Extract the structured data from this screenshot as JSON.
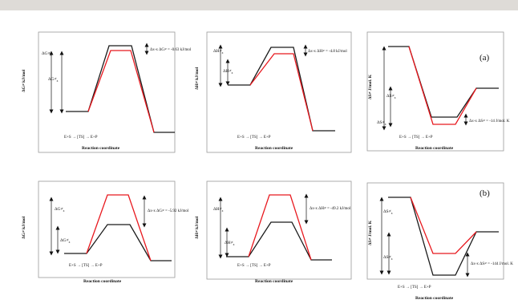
{
  "colors": {
    "black": "#1a1a1a",
    "red": "#e8191f",
    "frame": "#9a9a9a",
    "topbar": "#dedbd7"
  },
  "row_labels": [
    "(a)",
    "(b)"
  ],
  "x_axis_label": "Reaction coordinate",
  "scheme": {
    "es": "E+S",
    "ts": "[TS]",
    "ep": "E+P"
  },
  "panels": {
    "a_g": {
      "ylabel": "ΔG≠ kJ/mol",
      "big": "ΔG≠",
      "big_sub": "x",
      "small": "ΔG≠",
      "small_sub": "x",
      "delta": "Δx-x ΔG≠ = -0.63 kJ/mol"
    },
    "a_h": {
      "ylabel": "ΔH≠ kJ/mol",
      "big": "ΔH≠",
      "big_sub": "x",
      "small": "ΔH≠",
      "small_sub": "x",
      "delta": "Δx-x ΔH≠ = -4.8 kJ/mol"
    },
    "a_s": {
      "ylabel": "ΔS≠ J/mol. K",
      "big": "ΔS≠",
      "big_sub": "x",
      "small": "ΔS≠",
      "small_sub": "x",
      "delta": "Δx-x ΔS≠ = -14 J/mol. K"
    },
    "b_g": {
      "ylabel": "ΔG≠ kJ/mol",
      "big": "ΔG≠",
      "big_sub": "x",
      "small": "ΔG≠",
      "small_sub": "x",
      "delta": "Δx-x ΔG≠ = -5.92 kJ/mol"
    },
    "b_h": {
      "ylabel": "ΔH≠ kJ/mol",
      "big": "ΔH≠",
      "big_sub": "x",
      "small": "ΔH≠",
      "small_sub": "x",
      "delta": "Δx-x ΔH≠ = -49.2 kJ/mol"
    },
    "b_s": {
      "ylabel": "ΔS≠ J/mol. K",
      "big": "ΔS≠",
      "big_sub": "x",
      "small": "ΔS≠",
      "small_sub": "x",
      "delta": "Δx-x ΔS≠ = -144 J/mol. K"
    }
  }
}
